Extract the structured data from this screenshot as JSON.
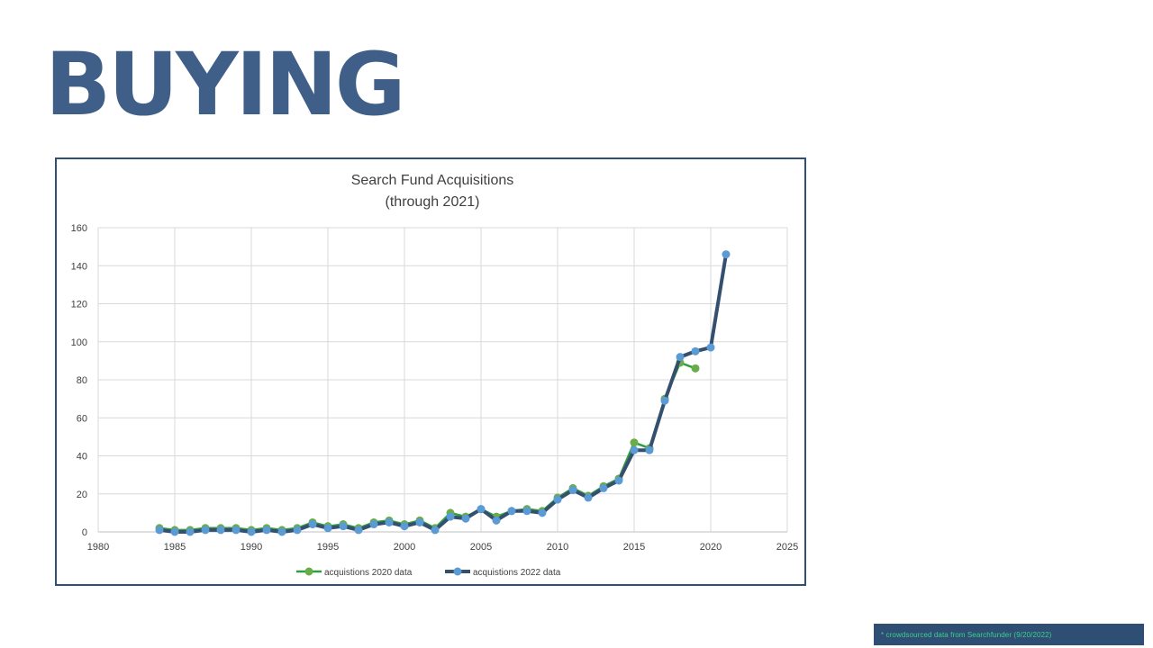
{
  "slide": {
    "title": "BUYING",
    "title_color": "#3f5f88",
    "footnote": "* crowdsourced data from Searchfunder (9/20/2022)",
    "footnote_bg": "#2f4e74",
    "footnote_color": "#3ecf8e"
  },
  "chart_data": {
    "type": "line",
    "title": "Search Fund Acquisitions",
    "subtitle": "(through 2021)",
    "xlabel": "",
    "ylabel": "",
    "xlim": [
      1980,
      2025
    ],
    "ylim": [
      0,
      160
    ],
    "xticks": [
      1980,
      1985,
      1990,
      1995,
      2000,
      2005,
      2010,
      2015,
      2020,
      2025
    ],
    "yticks": [
      0,
      20,
      40,
      60,
      80,
      100,
      120,
      140,
      160
    ],
    "grid": true,
    "legend_position": "bottom",
    "series": [
      {
        "name": "acquistions 2020 data",
        "line_color": "#2e9e44",
        "marker_color": "#6aac4a",
        "x": [
          1984,
          1985,
          1986,
          1987,
          1988,
          1989,
          1990,
          1991,
          1992,
          1993,
          1994,
          1995,
          1996,
          1997,
          1998,
          1999,
          2000,
          2001,
          2002,
          2003,
          2004,
          2005,
          2006,
          2007,
          2008,
          2009,
          2010,
          2011,
          2012,
          2013,
          2014,
          2015,
          2016,
          2017,
          2018,
          2019
        ],
        "y": [
          2,
          1,
          1,
          2,
          2,
          2,
          1,
          2,
          1,
          2,
          5,
          3,
          4,
          2,
          5,
          6,
          4,
          6,
          2,
          10,
          8,
          12,
          8,
          11,
          12,
          11,
          18,
          23,
          19,
          24,
          28,
          47,
          44,
          70,
          89,
          86
        ]
      },
      {
        "name": "acquistions 2022 data",
        "line_color": "#34506e",
        "marker_color": "#5b9bd5",
        "x": [
          1984,
          1985,
          1986,
          1987,
          1988,
          1989,
          1990,
          1991,
          1992,
          1993,
          1994,
          1995,
          1996,
          1997,
          1998,
          1999,
          2000,
          2001,
          2002,
          2003,
          2004,
          2005,
          2006,
          2007,
          2008,
          2009,
          2010,
          2011,
          2012,
          2013,
          2014,
          2015,
          2016,
          2017,
          2018,
          2019,
          2020,
          2021
        ],
        "y": [
          1,
          0,
          0,
          1,
          1,
          1,
          0,
          1,
          0,
          1,
          4,
          2,
          3,
          1,
          4,
          5,
          3,
          5,
          1,
          8,
          7,
          12,
          6,
          11,
          11,
          10,
          17,
          22,
          18,
          23,
          27,
          43,
          43,
          69,
          92,
          95,
          97,
          146
        ]
      }
    ]
  }
}
